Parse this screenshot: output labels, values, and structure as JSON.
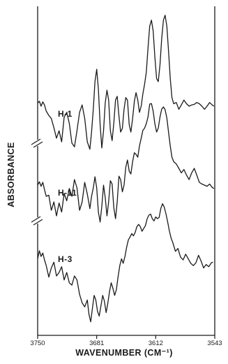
{
  "chart_data": {
    "type": "line",
    "title": "",
    "xlabel": "WAVENUMBER (CM⁻¹)",
    "ylabel": "ABSORBANCE",
    "xlim": [
      3750,
      3543
    ],
    "x_reversed": true,
    "x_ticks": [
      3750,
      3681,
      3612,
      3543
    ],
    "x_tick_labels": [
      "3750",
      "3681",
      "3612",
      "3543"
    ],
    "y_ticks_shown": false,
    "axis_break_marks": 2,
    "series": [
      {
        "name": "H-1",
        "points": [
          [
            3750,
            0.05
          ],
          [
            3748,
            0.08
          ],
          [
            3746,
            0.0
          ],
          [
            3744,
            0.07
          ],
          [
            3742,
            0.02
          ],
          [
            3740,
            -0.08
          ],
          [
            3737,
            -0.15
          ],
          [
            3734,
            -0.2
          ],
          [
            3731,
            -0.35
          ],
          [
            3728,
            -0.52
          ],
          [
            3725,
            -0.4
          ],
          [
            3722,
            -0.58
          ],
          [
            3719,
            -0.18
          ],
          [
            3716,
            -0.1
          ],
          [
            3713,
            -0.28
          ],
          [
            3710,
            -0.6
          ],
          [
            3707,
            -0.66
          ],
          [
            3704,
            -0.4
          ],
          [
            3701,
            -0.1
          ],
          [
            3698,
            0.02
          ],
          [
            3695,
            -0.2
          ],
          [
            3692,
            -0.58
          ],
          [
            3689,
            -0.7
          ],
          [
            3687,
            -0.42
          ],
          [
            3685,
            -0.05
          ],
          [
            3683,
            0.4
          ],
          [
            3681,
            0.6
          ],
          [
            3679,
            0.28
          ],
          [
            3677,
            -0.3
          ],
          [
            3675,
            -0.68
          ],
          [
            3673,
            -0.4
          ],
          [
            3671,
            0.05
          ],
          [
            3669,
            0.26
          ],
          [
            3667,
            0.1
          ],
          [
            3665,
            -0.4
          ],
          [
            3663,
            -0.56
          ],
          [
            3661,
            -0.28
          ],
          [
            3659,
            0.1
          ],
          [
            3657,
            0.16
          ],
          [
            3655,
            -0.16
          ],
          [
            3653,
            -0.42
          ],
          [
            3651,
            -0.36
          ],
          [
            3649,
            -0.05
          ],
          [
            3647,
            0.14
          ],
          [
            3645,
            0.1
          ],
          [
            3643,
            -0.3
          ],
          [
            3641,
            -0.42
          ],
          [
            3639,
            -0.2
          ],
          [
            3637,
            0.08
          ],
          [
            3635,
            0.22
          ],
          [
            3633,
            0.1
          ],
          [
            3631,
            -0.1
          ],
          [
            3629,
            0.0
          ],
          [
            3627,
            0.2
          ],
          [
            3625,
            0.36
          ],
          [
            3623,
            0.55
          ],
          [
            3621,
            0.95
          ],
          [
            3619,
            1.3
          ],
          [
            3617,
            1.4
          ],
          [
            3615,
            1.22
          ],
          [
            3613,
            0.8
          ],
          [
            3611,
            0.45
          ],
          [
            3609,
            0.4
          ],
          [
            3607,
            0.68
          ],
          [
            3605,
            1.1
          ],
          [
            3603,
            1.4
          ],
          [
            3601,
            1.48
          ],
          [
            3599,
            1.3
          ],
          [
            3597,
            0.9
          ],
          [
            3595,
            0.45
          ],
          [
            3593,
            0.14
          ],
          [
            3591,
            0.04
          ],
          [
            3588,
            0.06
          ],
          [
            3585,
            -0.05
          ],
          [
            3582,
            0.02
          ],
          [
            3579,
            0.1
          ],
          [
            3576,
            0.04
          ],
          [
            3573,
            0.0
          ],
          [
            3570,
            0.02
          ],
          [
            3567,
            0.03
          ],
          [
            3564,
            0.06
          ],
          [
            3561,
            0.04
          ],
          [
            3558,
            0.0
          ],
          [
            3555,
            -0.05
          ],
          [
            3552,
            0.0
          ],
          [
            3549,
            0.06
          ],
          [
            3546,
            0.02
          ],
          [
            3544,
            0.0
          ]
        ]
      },
      {
        "name": "H-11",
        "points": [
          [
            3750,
            0.0
          ],
          [
            3748,
            0.06
          ],
          [
            3746,
            -0.02
          ],
          [
            3744,
            0.05
          ],
          [
            3742,
            -0.08
          ],
          [
            3740,
            -0.2
          ],
          [
            3737,
            -0.18
          ],
          [
            3734,
            -0.45
          ],
          [
            3731,
            -0.3
          ],
          [
            3728,
            -0.55
          ],
          [
            3725,
            -0.32
          ],
          [
            3722,
            -0.48
          ],
          [
            3719,
            -0.15
          ],
          [
            3716,
            -0.28
          ],
          [
            3713,
            -0.06
          ],
          [
            3710,
            -0.2
          ],
          [
            3707,
            0.1
          ],
          [
            3704,
            -0.05
          ],
          [
            3701,
            -0.45
          ],
          [
            3698,
            -0.3
          ],
          [
            3695,
            0.05
          ],
          [
            3692,
            -0.16
          ],
          [
            3689,
            -0.42
          ],
          [
            3687,
            -0.2
          ],
          [
            3685,
            -0.05
          ],
          [
            3683,
            0.15
          ],
          [
            3681,
            -0.05
          ],
          [
            3679,
            -0.48
          ],
          [
            3677,
            -0.66
          ],
          [
            3675,
            -0.38
          ],
          [
            3673,
            0.0
          ],
          [
            3671,
            -0.22
          ],
          [
            3669,
            -0.55
          ],
          [
            3667,
            -0.3
          ],
          [
            3665,
            0.08
          ],
          [
            3663,
            0.02
          ],
          [
            3661,
            -0.4
          ],
          [
            3659,
            -0.6
          ],
          [
            3657,
            -0.3
          ],
          [
            3655,
            0.16
          ],
          [
            3653,
            0.1
          ],
          [
            3651,
            -0.12
          ],
          [
            3649,
            0.0
          ],
          [
            3647,
            0.32
          ],
          [
            3645,
            0.45
          ],
          [
            3643,
            0.25
          ],
          [
            3641,
            0.2
          ],
          [
            3639,
            0.42
          ],
          [
            3637,
            0.58
          ],
          [
            3635,
            0.55
          ],
          [
            3633,
            0.5
          ],
          [
            3631,
            0.7
          ],
          [
            3629,
            0.84
          ],
          [
            3627,
            0.98
          ],
          [
            3625,
            1.02
          ],
          [
            3623,
            1.1
          ],
          [
            3621,
            1.22
          ],
          [
            3619,
            1.45
          ],
          [
            3617,
            1.46
          ],
          [
            3615,
            1.32
          ],
          [
            3613,
            1.1
          ],
          [
            3611,
            0.95
          ],
          [
            3609,
            1.02
          ],
          [
            3607,
            1.22
          ],
          [
            3605,
            1.36
          ],
          [
            3603,
            1.4
          ],
          [
            3601,
            1.35
          ],
          [
            3599,
            1.2
          ],
          [
            3597,
            0.95
          ],
          [
            3595,
            0.7
          ],
          [
            3593,
            0.5
          ],
          [
            3591,
            0.42
          ],
          [
            3588,
            0.38
          ],
          [
            3585,
            0.3
          ],
          [
            3582,
            0.22
          ],
          [
            3579,
            0.28
          ],
          [
            3576,
            0.18
          ],
          [
            3573,
            0.1
          ],
          [
            3570,
            0.22
          ],
          [
            3567,
            0.3
          ],
          [
            3564,
            0.18
          ],
          [
            3561,
            0.05
          ],
          [
            3558,
            0.02
          ],
          [
            3555,
            0.0
          ],
          [
            3552,
            -0.02
          ],
          [
            3549,
            0.02
          ],
          [
            3546,
            -0.04
          ],
          [
            3544,
            -0.06
          ]
        ]
      },
      {
        "name": "H-3",
        "points": [
          [
            3750,
            0.02
          ],
          [
            3748,
            0.16
          ],
          [
            3746,
            0.06
          ],
          [
            3744,
            0.12
          ],
          [
            3742,
            0.0
          ],
          [
            3740,
            -0.1
          ],
          [
            3737,
            -0.3
          ],
          [
            3734,
            -0.14
          ],
          [
            3731,
            -0.04
          ],
          [
            3728,
            -0.28
          ],
          [
            3725,
            -0.22
          ],
          [
            3722,
            -0.12
          ],
          [
            3719,
            -0.35
          ],
          [
            3716,
            -0.22
          ],
          [
            3713,
            -0.4
          ],
          [
            3710,
            -0.44
          ],
          [
            3707,
            -0.28
          ],
          [
            3704,
            -0.35
          ],
          [
            3701,
            -0.6
          ],
          [
            3698,
            -0.75
          ],
          [
            3695,
            -0.82
          ],
          [
            3692,
            -0.7
          ],
          [
            3690,
            -0.95
          ],
          [
            3688,
            -1.08
          ],
          [
            3686,
            -0.85
          ],
          [
            3684,
            -0.62
          ],
          [
            3682,
            -0.7
          ],
          [
            3680,
            -0.9
          ],
          [
            3678,
            -0.98
          ],
          [
            3676,
            -0.8
          ],
          [
            3674,
            -0.62
          ],
          [
            3672,
            -0.72
          ],
          [
            3670,
            -0.92
          ],
          [
            3668,
            -0.76
          ],
          [
            3666,
            -0.55
          ],
          [
            3664,
            -0.4
          ],
          [
            3662,
            -0.5
          ],
          [
            3660,
            -0.62
          ],
          [
            3658,
            -0.52
          ],
          [
            3656,
            -0.3
          ],
          [
            3654,
            -0.1
          ],
          [
            3652,
            0.02
          ],
          [
            3650,
            -0.06
          ],
          [
            3648,
            0.06
          ],
          [
            3646,
            0.22
          ],
          [
            3644,
            0.35
          ],
          [
            3642,
            0.4
          ],
          [
            3640,
            0.46
          ],
          [
            3638,
            0.42
          ],
          [
            3636,
            0.48
          ],
          [
            3634,
            0.58
          ],
          [
            3632,
            0.62
          ],
          [
            3630,
            0.58
          ],
          [
            3628,
            0.5
          ],
          [
            3626,
            0.55
          ],
          [
            3624,
            0.6
          ],
          [
            3622,
            0.72
          ],
          [
            3620,
            0.78
          ],
          [
            3618,
            0.8
          ],
          [
            3616,
            0.72
          ],
          [
            3614,
            0.68
          ],
          [
            3612,
            0.75
          ],
          [
            3610,
            0.72
          ],
          [
            3608,
            0.74
          ],
          [
            3606,
            0.9
          ],
          [
            3604,
            0.98
          ],
          [
            3602,
            0.92
          ],
          [
            3600,
            0.8
          ],
          [
            3598,
            0.66
          ],
          [
            3596,
            0.5
          ],
          [
            3594,
            0.38
          ],
          [
            3592,
            0.3
          ],
          [
            3589,
            0.15
          ],
          [
            3586,
            0.2
          ],
          [
            3583,
            0.05
          ],
          [
            3580,
            0.0
          ],
          [
            3577,
            0.1
          ],
          [
            3574,
            0.02
          ],
          [
            3571,
            -0.06
          ],
          [
            3568,
            -0.1
          ],
          [
            3565,
            -0.05
          ],
          [
            3562,
            0.08
          ],
          [
            3559,
            -0.02
          ],
          [
            3556,
            -0.14
          ],
          [
            3553,
            -0.08
          ],
          [
            3550,
            -0.12
          ],
          [
            3547,
            -0.05
          ],
          [
            3545,
            -0.04
          ]
        ]
      }
    ],
    "legend": "none"
  }
}
